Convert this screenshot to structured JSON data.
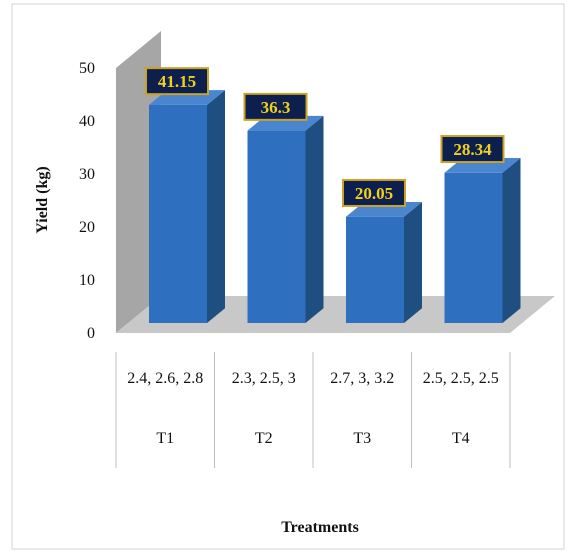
{
  "chart_data": {
    "type": "bar",
    "categories": [
      {
        "sub": "2.4, 2.6, 2.8",
        "group": "T1"
      },
      {
        "sub": "2.3, 2.5, 3",
        "group": "T2"
      },
      {
        "sub": "2.7, 3, 3.2",
        "group": "T3"
      },
      {
        "sub": "2.5, 2.5, 2.5",
        "group": "T4"
      }
    ],
    "values": [
      41.15,
      36.3,
      20.05,
      28.34
    ],
    "data_labels": [
      "41.15",
      "36.3",
      "20.05",
      "28.34"
    ],
    "xlabel": "Treatments",
    "ylabel": "Yield (kg)",
    "ylim": [
      0,
      50
    ],
    "yticks": [
      "0",
      "10",
      "20",
      "30",
      "40",
      "50"
    ],
    "legend": "none",
    "grid": false,
    "colors": {
      "bar_front": "#2f6fbf",
      "bar_side": "#1f4e80",
      "bar_top": "#4a86cf",
      "wall": "#a6a6a6",
      "floor": "#c8c8c8",
      "label_bg": "#0d1f4d",
      "label_border": "#c9a227",
      "label_text": "#f2d11b"
    }
  }
}
